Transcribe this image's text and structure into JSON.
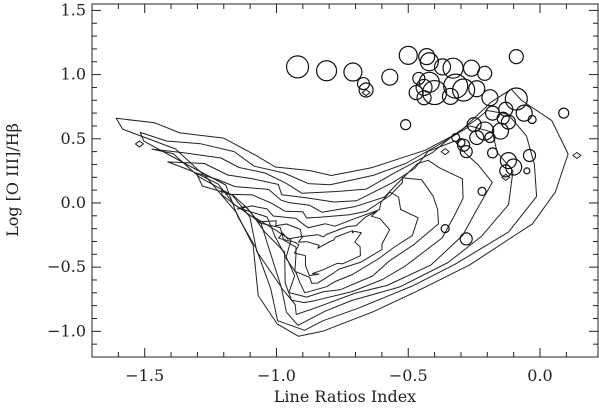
{
  "chart_data": {
    "type": "scatter",
    "xlabel": "Line Ratios Index",
    "ylabel": "Log [O III]/Hβ",
    "xlim": [
      -1.7,
      0.22
    ],
    "ylim": [
      -1.2,
      1.55
    ],
    "xticks": [
      -1.5,
      -1.0,
      -0.5,
      0.0
    ],
    "xtick_labels": [
      "−1.5",
      "−1.0",
      "−0.5",
      "0.0"
    ],
    "yticks": [
      -1.0,
      -0.5,
      0.0,
      0.5,
      1.0,
      1.5
    ],
    "ytick_labels": [
      "−1.0",
      "−0.5",
      "0.0",
      "0.5",
      "1.0",
      "1.5"
    ],
    "grid": false,
    "contour_levels": 9,
    "points": [
      {
        "x": -0.92,
        "y": 1.06,
        "size": 11
      },
      {
        "x": -0.81,
        "y": 1.03,
        "size": 10
      },
      {
        "x": -0.71,
        "y": 1.02,
        "size": 9
      },
      {
        "x": -0.66,
        "y": 0.88,
        "size": 7
      },
      {
        "x": -0.67,
        "y": 0.93,
        "size": 6
      },
      {
        "x": -0.57,
        "y": 0.98,
        "size": 8
      },
      {
        "x": -0.5,
        "y": 1.15,
        "size": 9
      },
      {
        "x": -0.43,
        "y": 1.14,
        "size": 8
      },
      {
        "x": -0.42,
        "y": 1.1,
        "size": 9
      },
      {
        "x": -0.37,
        "y": 1.06,
        "size": 8
      },
      {
        "x": -0.33,
        "y": 1.05,
        "size": 10
      },
      {
        "x": -0.26,
        "y": 1.05,
        "size": 8
      },
      {
        "x": -0.21,
        "y": 1.01,
        "size": 7
      },
      {
        "x": -0.09,
        "y": 1.14,
        "size": 7
      },
      {
        "x": -0.46,
        "y": 0.97,
        "size": 6
      },
      {
        "x": -0.42,
        "y": 0.94,
        "size": 10
      },
      {
        "x": -0.44,
        "y": 0.9,
        "size": 8
      },
      {
        "x": -0.4,
        "y": 0.86,
        "size": 12
      },
      {
        "x": -0.47,
        "y": 0.86,
        "size": 7
      },
      {
        "x": -0.44,
        "y": 0.82,
        "size": 7
      },
      {
        "x": -0.32,
        "y": 0.91,
        "size": 12
      },
      {
        "x": -0.29,
        "y": 0.88,
        "size": 11
      },
      {
        "x": -0.34,
        "y": 0.83,
        "size": 8
      },
      {
        "x": -0.24,
        "y": 0.89,
        "size": 8
      },
      {
        "x": -0.19,
        "y": 0.82,
        "size": 8
      },
      {
        "x": -0.09,
        "y": 0.81,
        "size": 11
      },
      {
        "x": -0.06,
        "y": 0.7,
        "size": 8
      },
      {
        "x": -0.18,
        "y": 0.7,
        "size": 7
      },
      {
        "x": -0.13,
        "y": 0.73,
        "size": 7
      },
      {
        "x": -0.12,
        "y": 0.63,
        "size": 7
      },
      {
        "x": -0.14,
        "y": 0.66,
        "size": 6
      },
      {
        "x": -0.03,
        "y": 0.65,
        "size": 4
      },
      {
        "x": 0.09,
        "y": 0.7,
        "size": 5
      },
      {
        "x": -0.51,
        "y": 0.61,
        "size": 5
      },
      {
        "x": -0.25,
        "y": 0.61,
        "size": 7
      },
      {
        "x": -0.21,
        "y": 0.56,
        "size": 9
      },
      {
        "x": -0.15,
        "y": 0.56,
        "size": 8
      },
      {
        "x": -0.24,
        "y": 0.51,
        "size": 7
      },
      {
        "x": -0.19,
        "y": 0.51,
        "size": 5
      },
      {
        "x": -0.29,
        "y": 0.45,
        "size": 6
      },
      {
        "x": -0.28,
        "y": 0.4,
        "size": 6
      },
      {
        "x": -0.18,
        "y": 0.39,
        "size": 5
      },
      {
        "x": -0.32,
        "y": 0.51,
        "size": 4
      },
      {
        "x": -0.3,
        "y": 0.47,
        "size": 4
      },
      {
        "x": -0.04,
        "y": 0.37,
        "size": 6
      },
      {
        "x": -0.12,
        "y": 0.33,
        "size": 8
      },
      {
        "x": -0.1,
        "y": 0.28,
        "size": 8
      },
      {
        "x": -0.13,
        "y": 0.25,
        "size": 6
      },
      {
        "x": -0.05,
        "y": 0.25,
        "size": 3
      },
      {
        "x": -0.22,
        "y": 0.09,
        "size": 4
      },
      {
        "x": -0.36,
        "y": -0.2,
        "size": 4
      },
      {
        "x": -0.28,
        "y": -0.28,
        "size": 6
      }
    ]
  }
}
